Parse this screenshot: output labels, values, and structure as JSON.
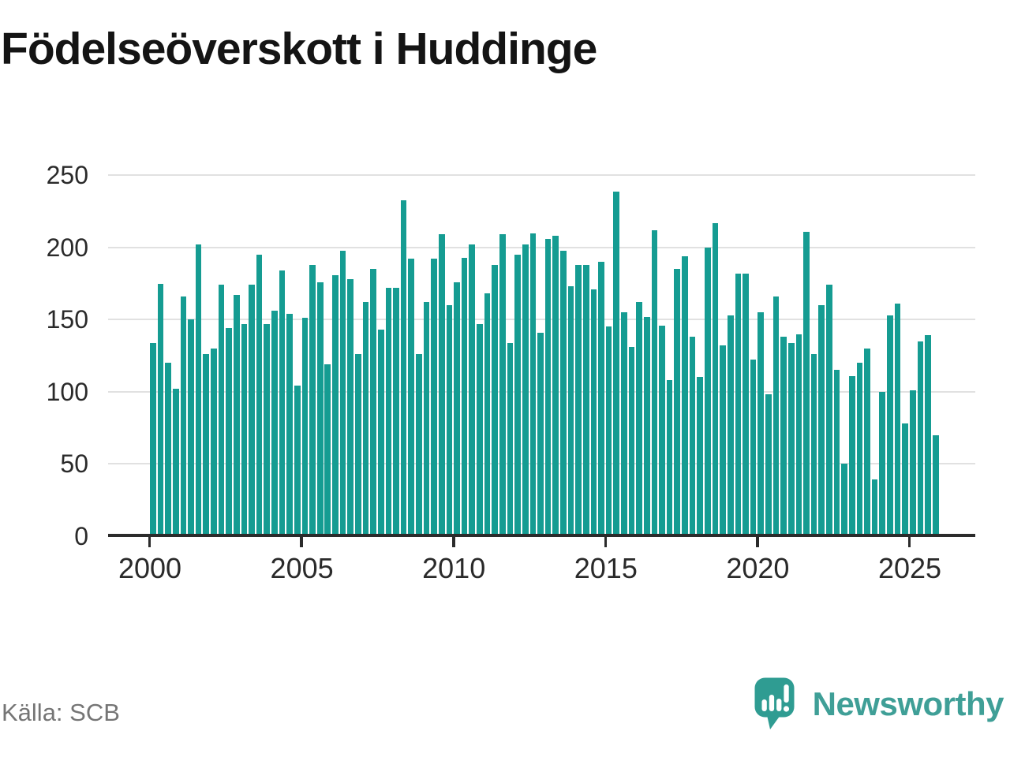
{
  "title": "Födelseöverskott i Huddinge",
  "source": "Källa: SCB",
  "branding": {
    "logo_text": "Newsworthy",
    "logo_icon": "speech-bubble-bar-chart-exclamation"
  },
  "colors": {
    "bar": "#159C92",
    "grid": "#E1E1E1",
    "axis": "#2B2B2B",
    "axis_label": "#2A2A2A",
    "title": "#141414",
    "source": "#757575",
    "logo_bubble": "#2F9C92",
    "logo_text": "#3F9F97",
    "background": "#FFFFFF"
  },
  "chart_data": {
    "type": "bar",
    "title": "Födelseöverskott i Huddinge",
    "xlabel": "",
    "ylabel": "",
    "frequency": "quarterly",
    "start_year": 2000,
    "periods_per_year": 4,
    "x_tick_years": [
      2000,
      2005,
      2010,
      2015,
      2020,
      2025
    ],
    "y_ticks": [
      0,
      50,
      100,
      150,
      200,
      250
    ],
    "ylim": [
      0,
      250
    ],
    "grid": true,
    "legend": false,
    "values": [
      134,
      175,
      120,
      102,
      166,
      150,
      202,
      126,
      130,
      174,
      144,
      167,
      147,
      174,
      195,
      147,
      156,
      184,
      154,
      104,
      151,
      188,
      176,
      119,
      181,
      198,
      178,
      126,
      162,
      185,
      143,
      172,
      172,
      233,
      192,
      126,
      162,
      192,
      209,
      160,
      176,
      193,
      202,
      147,
      168,
      188,
      209,
      134,
      195,
      202,
      210,
      141,
      206,
      208,
      198,
      173,
      188,
      188,
      171,
      190,
      145,
      239,
      155,
      131,
      162,
      152,
      212,
      146,
      108,
      185,
      194,
      138,
      110,
      200,
      217,
      132,
      153,
      182,
      182,
      122,
      155,
      98,
      166,
      138,
      134,
      140,
      211,
      126,
      160,
      174,
      115,
      50,
      111,
      120,
      130,
      39,
      100,
      153,
      161,
      78,
      101,
      135,
      139,
      70
    ]
  }
}
